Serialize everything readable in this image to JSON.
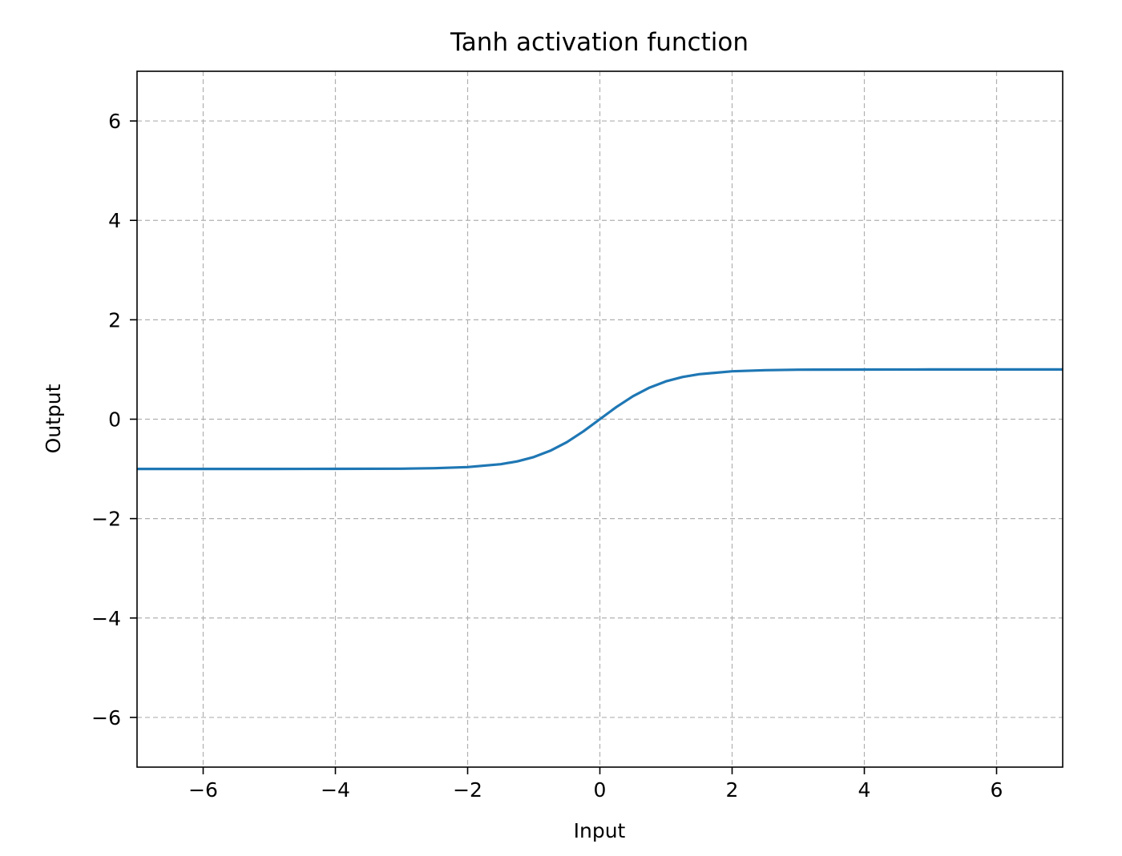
{
  "chart_data": {
    "type": "line",
    "title": "Tanh activation function",
    "xlabel": "Input",
    "ylabel": "Output",
    "xlim": [
      -7,
      7
    ],
    "ylim": [
      -7,
      7
    ],
    "xticks": [
      -6,
      -4,
      -2,
      0,
      2,
      4,
      6
    ],
    "yticks": [
      -6,
      -4,
      -2,
      0,
      2,
      4,
      6
    ],
    "xtick_labels": [
      "−6",
      "−4",
      "−2",
      "0",
      "2",
      "4",
      "6"
    ],
    "ytick_labels": [
      "−6",
      "−4",
      "−2",
      "0",
      "2",
      "4",
      "6"
    ],
    "grid": true,
    "grid_style": "dashed",
    "series": [
      {
        "color": "#1f77b4",
        "x": [
          -7,
          -6,
          -5,
          -4,
          -3,
          -2.5,
          -2,
          -1.5,
          -1.25,
          -1,
          -0.75,
          -0.5,
          -0.25,
          0,
          0.25,
          0.5,
          0.75,
          1,
          1.25,
          1.5,
          2,
          2.5,
          3,
          4,
          5,
          6,
          7
        ],
        "y": [
          -1.0,
          -1.0,
          -0.9999,
          -0.9993,
          -0.9951,
          -0.9866,
          -0.964,
          -0.9051,
          -0.8483,
          -0.7616,
          -0.6351,
          -0.4621,
          -0.2449,
          0.0,
          0.2449,
          0.4621,
          0.6351,
          0.7616,
          0.8483,
          0.9051,
          0.964,
          0.9866,
          0.9951,
          0.9993,
          0.9999,
          1.0,
          1.0
        ]
      }
    ]
  }
}
